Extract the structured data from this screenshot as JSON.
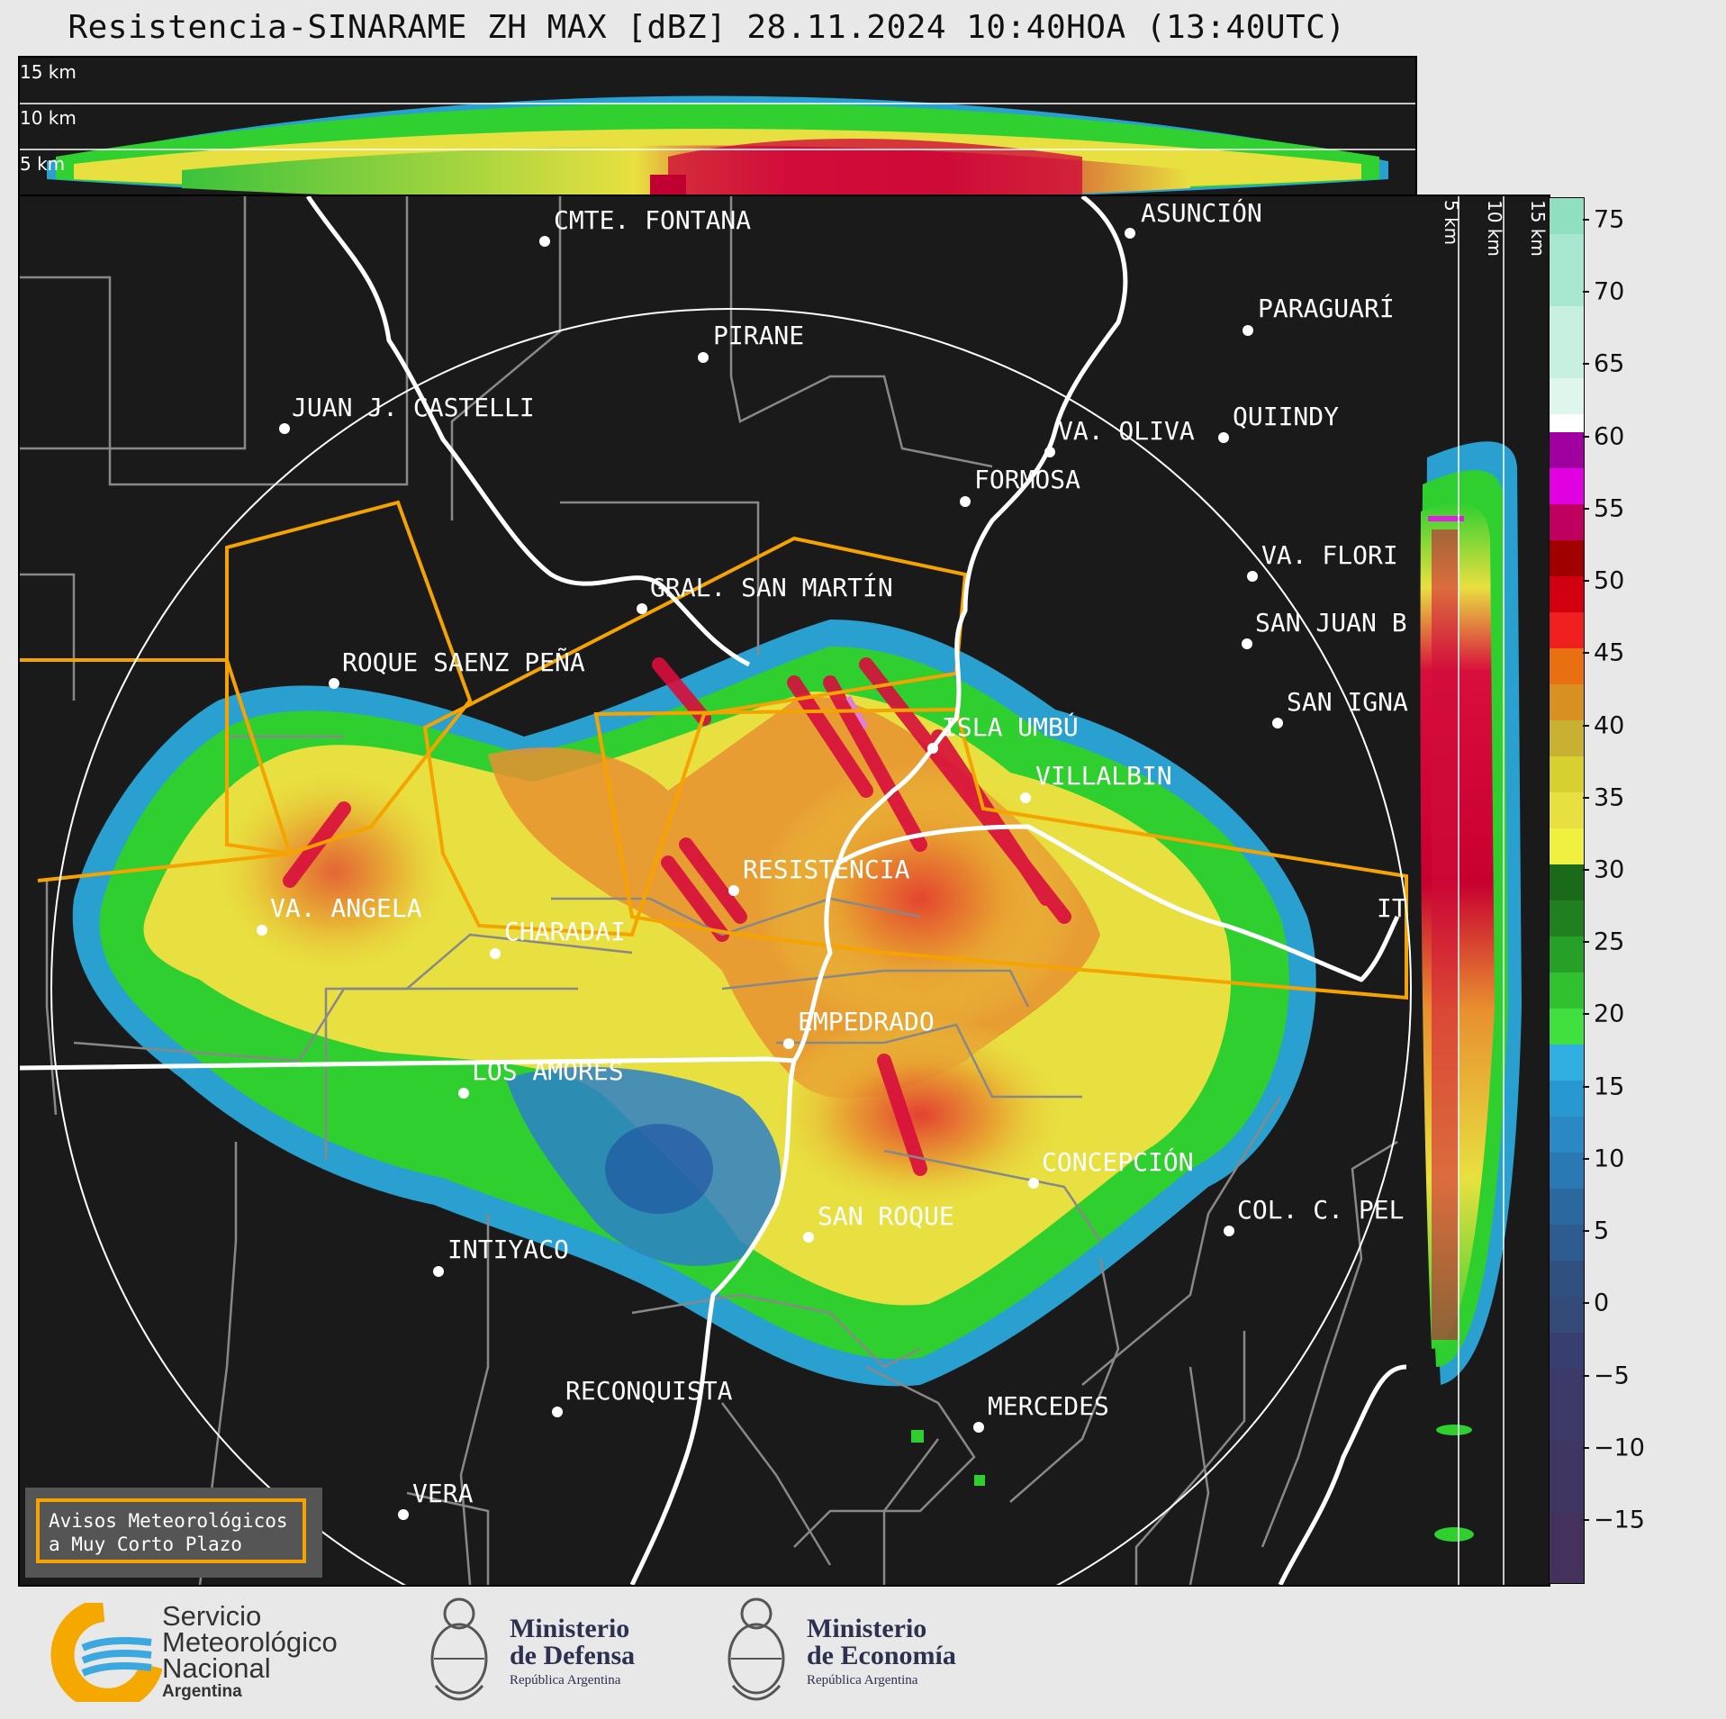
{
  "title": "Resistencia-SINARAME ZH MAX [dBZ] 28.11.2024 10:40HOA (13:40UTC)",
  "altitude_labels": [
    "15 km",
    "10 km",
    "5 km"
  ],
  "side_altitude_labels": [
    "5 km",
    "10 km",
    "15 km"
  ],
  "cities": [
    {
      "name": "CMTE. FONTANA"
    },
    {
      "name": "ASUNCIÓN"
    },
    {
      "name": "PIRANE"
    },
    {
      "name": "PARAGUARÍ"
    },
    {
      "name": "JUAN J. CASTELLI"
    },
    {
      "name": "VA. OLIVA"
    },
    {
      "name": "QUIINDY"
    },
    {
      "name": "FORMOSA"
    },
    {
      "name": "VA. FLORI"
    },
    {
      "name": "GRAL. SAN MARTÍN"
    },
    {
      "name": "SAN JUAN B"
    },
    {
      "name": "ROQUE SAENZ PEÑA"
    },
    {
      "name": "SAN IGNA"
    },
    {
      "name": "ISLA UMBÚ"
    },
    {
      "name": "VILLALBIN"
    },
    {
      "name": "RESISTENCIA"
    },
    {
      "name": "IT"
    },
    {
      "name": "VA. ANGELA"
    },
    {
      "name": "CHARADAI"
    },
    {
      "name": "EMPEDRADO"
    },
    {
      "name": "LOS AMORES"
    },
    {
      "name": "CONCEPCIÓN"
    },
    {
      "name": "SAN ROQUE"
    },
    {
      "name": "COL. C. PEL"
    },
    {
      "name": "INTIYACO"
    },
    {
      "name": "RECONQUISTA"
    },
    {
      "name": "MERCEDES"
    },
    {
      "name": "VERA"
    }
  ],
  "colorbar": {
    "ticks": [
      "75",
      "70",
      "65",
      "60",
      "55",
      "50",
      "45",
      "40",
      "35",
      "30",
      "25",
      "20",
      "15",
      "10",
      "5",
      "0",
      "−5",
      "−10",
      "−15"
    ],
    "min": -20,
    "max": 77
  },
  "aviso": {
    "line1": "Avisos Meteorológicos",
    "line2": "a Muy Corto Plazo"
  },
  "logos": {
    "smn": {
      "line1": "Servicio",
      "line2": "Meteorológico",
      "line3": "Nacional",
      "line4": "Argentina"
    },
    "defensa": {
      "line1": "Ministerio",
      "line2": "de Defensa",
      "line3": "República Argentina"
    },
    "economia": {
      "line1": "Ministerio",
      "line2": "de Economía",
      "line3": "República Argentina"
    }
  }
}
